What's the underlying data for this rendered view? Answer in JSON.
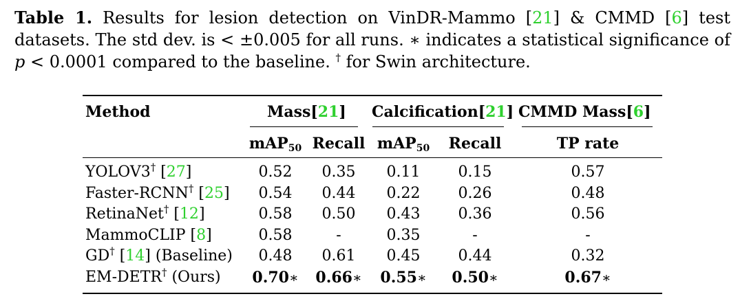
{
  "caption": {
    "label": "Table 1.",
    "part1": "Results for lesion detection on VinDR-Mammo [",
    "cite1": "21",
    "part2": "] & CMMD [",
    "cite2": "6",
    "part3": "] test datasets. The std dev. is < ±0.005 for all runs. ∗ indicates a statistical significance of ",
    "pvar": "p",
    "part4": " < 0.0001 compared to the baseline. ",
    "dagger": "†",
    "part5": " for Swin architecture."
  },
  "table": {
    "header_method": "Method",
    "group_mass": "Mass[",
    "group_mass_cite": "21",
    "group_calc": "Calcification[",
    "group_calc_cite": "21",
    "group_cmmd": "CMMD Mass[",
    "group_cmmd_cite": "6",
    "bracket_close": "]",
    "col_map": "mAP",
    "col_map_sub": "50",
    "col_recall": "Recall",
    "col_tprate": "TP rate",
    "rows": [
      {
        "name": "YOLOV3",
        "dag": "†",
        "pre": " [",
        "cite": "27",
        "post": "]",
        "v1": "0.52",
        "v2": "0.35",
        "v3": "0.11",
        "v4": "0.15",
        "v5": "0.57"
      },
      {
        "name": "Faster-RCNN",
        "dag": "†",
        "pre": " [",
        "cite": "25",
        "post": "]",
        "v1": "0.54",
        "v2": "0.44",
        "v3": "0.22",
        "v4": "0.26",
        "v5": "0.48"
      },
      {
        "name": "RetinaNet",
        "dag": "†",
        "pre": " [",
        "cite": "12",
        "post": "]",
        "v1": "0.58",
        "v2": "0.50",
        "v3": "0.43",
        "v4": "0.36",
        "v5": "0.56"
      },
      {
        "name": "MammoCLIP",
        "dag": "",
        "pre": " [",
        "cite": "8",
        "post": "]",
        "v1": "0.58",
        "v2": "-",
        "v3": "0.35",
        "v4": "-",
        "v5": "-"
      },
      {
        "name": "GD",
        "dag": "†",
        "pre": " [",
        "cite": "14",
        "post": "] (Baseline)",
        "v1": "0.48",
        "v2": "0.61",
        "v3": "0.45",
        "v4": "0.44",
        "v5": "0.32"
      },
      {
        "name": "EM-DETR",
        "dag": "†",
        "pre": " (Ours)",
        "cite": "",
        "post": "",
        "v1": "0.70",
        "v2": "0.66",
        "v3": "0.55",
        "v4": "0.50",
        "v5": "0.67",
        "star": "∗"
      }
    ]
  }
}
